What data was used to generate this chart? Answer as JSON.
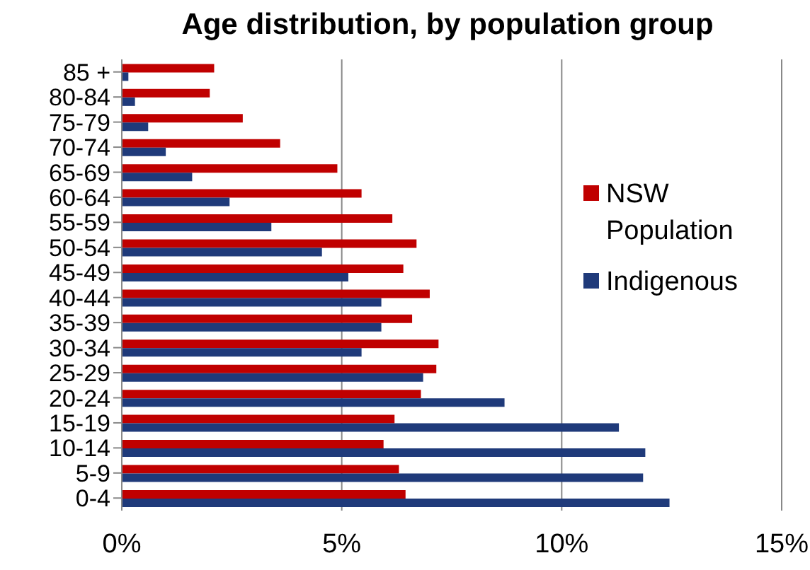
{
  "chart_data": {
    "type": "bar",
    "orientation": "horizontal",
    "title": "Age distribution, by population group",
    "categories": [
      "85 +",
      "80-84",
      "75-79",
      "70-74",
      "65-69",
      "60-64",
      "55-59",
      "50-54",
      "45-49",
      "40-44",
      "35-39",
      "30-34",
      "25-29",
      "20-24",
      "15-19",
      "10-14",
      "5-9",
      "0-4"
    ],
    "series": [
      {
        "name": "NSW Population",
        "color": "#c00000",
        "values": [
          2.1,
          2.0,
          2.75,
          3.6,
          4.9,
          5.45,
          6.15,
          6.7,
          6.4,
          7.0,
          6.6,
          7.2,
          7.15,
          6.8,
          6.2,
          5.95,
          6.3,
          6.45
        ]
      },
      {
        "name": "Indigenous",
        "color": "#1f3a7a",
        "values": [
          0.15,
          0.3,
          0.6,
          1.0,
          1.6,
          2.45,
          3.4,
          4.55,
          5.15,
          5.9,
          5.9,
          5.45,
          6.85,
          8.7,
          11.3,
          11.9,
          11.85,
          12.45
        ]
      }
    ],
    "xlim": [
      0,
      15
    ],
    "xticks": [
      {
        "value": 0,
        "label": "0%"
      },
      {
        "value": 5,
        "label": "5%"
      },
      {
        "value": 10,
        "label": "10%"
      },
      {
        "value": 15,
        "label": "15%"
      }
    ],
    "grid": "x",
    "legend": "right"
  }
}
